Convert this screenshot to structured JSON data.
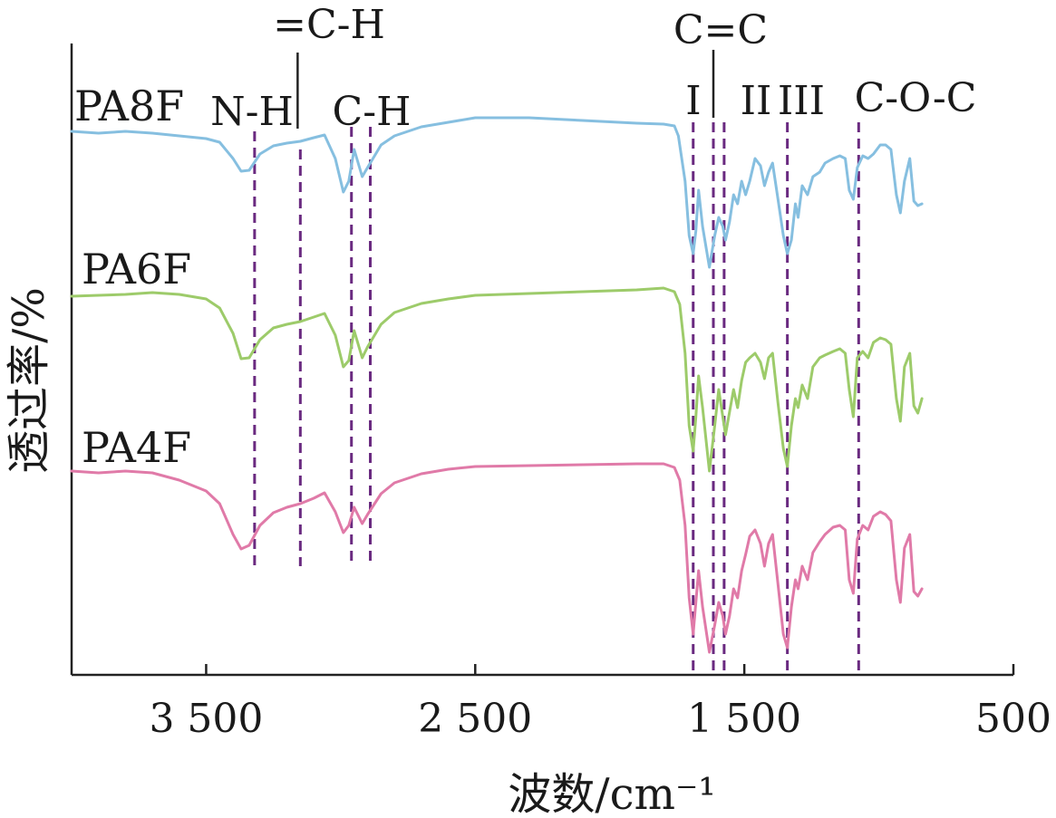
{
  "chart_data": {
    "type": "line",
    "title": "",
    "xlabel": "波数/cm⁻¹",
    "ylabel": "透过率/%",
    "xlim": [
      4000,
      500
    ],
    "x_reversed": true,
    "yaxis_ticks": false,
    "grid": false,
    "xticks": [
      {
        "value": 3500,
        "label": "3 500"
      },
      {
        "value": 2500,
        "label": "2 500"
      },
      {
        "value": 1500,
        "label": "1 500"
      },
      {
        "value": 500,
        "label": "500"
      }
    ],
    "series": [
      {
        "name": "PA8F",
        "color": "#86bfe0",
        "points": [
          [
            4000,
            145
          ],
          [
            3900,
            147
          ],
          [
            3800,
            145
          ],
          [
            3700,
            147
          ],
          [
            3600,
            150
          ],
          [
            3500,
            153
          ],
          [
            3450,
            157
          ],
          [
            3400,
            175
          ],
          [
            3370,
            189
          ],
          [
            3340,
            188
          ],
          [
            3300,
            170
          ],
          [
            3250,
            161
          ],
          [
            3200,
            158
          ],
          [
            3150,
            156
          ],
          [
            3100,
            152
          ],
          [
            3060,
            149
          ],
          [
            3020,
            175
          ],
          [
            2990,
            212
          ],
          [
            2970,
            200
          ],
          [
            2950,
            165
          ],
          [
            2920,
            195
          ],
          [
            2900,
            185
          ],
          [
            2850,
            160
          ],
          [
            2800,
            150
          ],
          [
            2700,
            140
          ],
          [
            2600,
            135
          ],
          [
            2500,
            130
          ],
          [
            2300,
            130
          ],
          [
            2100,
            133
          ],
          [
            1900,
            136
          ],
          [
            1800,
            137
          ],
          [
            1760,
            139
          ],
          [
            1745,
            150
          ],
          [
            1720,
            200
          ],
          [
            1705,
            260
          ],
          [
            1690,
            280
          ],
          [
            1680,
            255
          ],
          [
            1670,
            210
          ],
          [
            1655,
            250
          ],
          [
            1630,
            295
          ],
          [
            1610,
            260
          ],
          [
            1595,
            240
          ],
          [
            1580,
            250
          ],
          [
            1570,
            265
          ],
          [
            1555,
            245
          ],
          [
            1540,
            215
          ],
          [
            1525,
            225
          ],
          [
            1510,
            200
          ],
          [
            1495,
            215
          ],
          [
            1480,
            200
          ],
          [
            1460,
            175
          ],
          [
            1440,
            183
          ],
          [
            1425,
            205
          ],
          [
            1410,
            190
          ],
          [
            1395,
            180
          ],
          [
            1375,
            220
          ],
          [
            1355,
            260
          ],
          [
            1340,
            280
          ],
          [
            1325,
            265
          ],
          [
            1310,
            225
          ],
          [
            1300,
            240
          ],
          [
            1285,
            205
          ],
          [
            1265,
            215
          ],
          [
            1245,
            195
          ],
          [
            1220,
            190
          ],
          [
            1200,
            180
          ],
          [
            1170,
            175
          ],
          [
            1145,
            172
          ],
          [
            1125,
            175
          ],
          [
            1110,
            210
          ],
          [
            1095,
            220
          ],
          [
            1080,
            185
          ],
          [
            1060,
            172
          ],
          [
            1040,
            175
          ],
          [
            1020,
            170
          ],
          [
            995,
            160
          ],
          [
            975,
            160
          ],
          [
            955,
            165
          ],
          [
            935,
            215
          ],
          [
            920,
            235
          ],
          [
            905,
            200
          ],
          [
            885,
            175
          ],
          [
            870,
            222
          ],
          [
            855,
            227
          ],
          [
            840,
            225
          ]
        ]
      },
      {
        "name": "PA6F",
        "color": "#9dcb6a",
        "points": [
          [
            4000,
            327
          ],
          [
            3900,
            326
          ],
          [
            3800,
            325
          ],
          [
            3700,
            323
          ],
          [
            3600,
            325
          ],
          [
            3500,
            330
          ],
          [
            3450,
            340
          ],
          [
            3400,
            368
          ],
          [
            3370,
            396
          ],
          [
            3340,
            395
          ],
          [
            3300,
            375
          ],
          [
            3250,
            362
          ],
          [
            3200,
            358
          ],
          [
            3150,
            355
          ],
          [
            3100,
            350
          ],
          [
            3060,
            346
          ],
          [
            3020,
            370
          ],
          [
            2990,
            405
          ],
          [
            2970,
            398
          ],
          [
            2950,
            365
          ],
          [
            2920,
            395
          ],
          [
            2900,
            383
          ],
          [
            2850,
            358
          ],
          [
            2800,
            345
          ],
          [
            2700,
            335
          ],
          [
            2600,
            330
          ],
          [
            2500,
            326
          ],
          [
            2300,
            324
          ],
          [
            2100,
            322
          ],
          [
            1900,
            320
          ],
          [
            1800,
            318
          ],
          [
            1760,
            322
          ],
          [
            1740,
            336
          ],
          [
            1720,
            390
          ],
          [
            1705,
            470
          ],
          [
            1690,
            498
          ],
          [
            1680,
            460
          ],
          [
            1670,
            415
          ],
          [
            1655,
            450
          ],
          [
            1630,
            520
          ],
          [
            1610,
            470
          ],
          [
            1595,
            430
          ],
          [
            1580,
            460
          ],
          [
            1570,
            480
          ],
          [
            1555,
            455
          ],
          [
            1540,
            430
          ],
          [
            1525,
            450
          ],
          [
            1510,
            420
          ],
          [
            1495,
            400
          ],
          [
            1480,
            395
          ],
          [
            1460,
            390
          ],
          [
            1440,
            400
          ],
          [
            1425,
            418
          ],
          [
            1410,
            395
          ],
          [
            1395,
            390
          ],
          [
            1375,
            445
          ],
          [
            1355,
            495
          ],
          [
            1340,
            515
          ],
          [
            1325,
            470
          ],
          [
            1310,
            440
          ],
          [
            1300,
            450
          ],
          [
            1285,
            425
          ],
          [
            1265,
            440
          ],
          [
            1245,
            405
          ],
          [
            1220,
            395
          ],
          [
            1200,
            392
          ],
          [
            1170,
            388
          ],
          [
            1145,
            385
          ],
          [
            1125,
            390
          ],
          [
            1110,
            430
          ],
          [
            1095,
            460
          ],
          [
            1080,
            395
          ],
          [
            1060,
            388
          ],
          [
            1040,
            395
          ],
          [
            1020,
            378
          ],
          [
            995,
            373
          ],
          [
            975,
            375
          ],
          [
            955,
            380
          ],
          [
            935,
            440
          ],
          [
            920,
            465
          ],
          [
            905,
            405
          ],
          [
            885,
            390
          ],
          [
            870,
            448
          ],
          [
            855,
            456
          ],
          [
            840,
            440
          ]
        ]
      },
      {
        "name": "PA4F",
        "color": "#e07aa8",
        "points": [
          [
            4000,
            520
          ],
          [
            3900,
            522
          ],
          [
            3800,
            520
          ],
          [
            3700,
            522
          ],
          [
            3600,
            530
          ],
          [
            3500,
            542
          ],
          [
            3450,
            556
          ],
          [
            3400,
            590
          ],
          [
            3370,
            606
          ],
          [
            3340,
            602
          ],
          [
            3300,
            580
          ],
          [
            3250,
            566
          ],
          [
            3200,
            560
          ],
          [
            3150,
            556
          ],
          [
            3100,
            550
          ],
          [
            3060,
            544
          ],
          [
            3020,
            565
          ],
          [
            2990,
            588
          ],
          [
            2970,
            580
          ],
          [
            2950,
            560
          ],
          [
            2920,
            578
          ],
          [
            2900,
            568
          ],
          [
            2850,
            545
          ],
          [
            2800,
            533
          ],
          [
            2700,
            523
          ],
          [
            2600,
            518
          ],
          [
            2500,
            515
          ],
          [
            2300,
            514
          ],
          [
            2100,
            513
          ],
          [
            1900,
            512
          ],
          [
            1800,
            512
          ],
          [
            1760,
            516
          ],
          [
            1740,
            530
          ],
          [
            1720,
            580
          ],
          [
            1705,
            660
          ],
          [
            1690,
            700
          ],
          [
            1680,
            665
          ],
          [
            1670,
            630
          ],
          [
            1655,
            670
          ],
          [
            1630,
            720
          ],
          [
            1610,
            690
          ],
          [
            1595,
            665
          ],
          [
            1580,
            680
          ],
          [
            1570,
            700
          ],
          [
            1555,
            680
          ],
          [
            1540,
            650
          ],
          [
            1525,
            660
          ],
          [
            1510,
            630
          ],
          [
            1495,
            612
          ],
          [
            1480,
            592
          ],
          [
            1460,
            585
          ],
          [
            1440,
            600
          ],
          [
            1425,
            625
          ],
          [
            1410,
            600
          ],
          [
            1395,
            590
          ],
          [
            1375,
            645
          ],
          [
            1355,
            700
          ],
          [
            1340,
            715
          ],
          [
            1325,
            670
          ],
          [
            1310,
            640
          ],
          [
            1300,
            650
          ],
          [
            1285,
            625
          ],
          [
            1265,
            640
          ],
          [
            1245,
            610
          ],
          [
            1220,
            598
          ],
          [
            1200,
            590
          ],
          [
            1170,
            582
          ],
          [
            1145,
            580
          ],
          [
            1125,
            585
          ],
          [
            1110,
            640
          ],
          [
            1095,
            655
          ],
          [
            1080,
            595
          ],
          [
            1060,
            580
          ],
          [
            1040,
            585
          ],
          [
            1020,
            570
          ],
          [
            995,
            565
          ],
          [
            975,
            568
          ],
          [
            955,
            575
          ],
          [
            935,
            640
          ],
          [
            920,
            665
          ],
          [
            905,
            605
          ],
          [
            885,
            590
          ],
          [
            870,
            653
          ],
          [
            855,
            658
          ],
          [
            840,
            650
          ]
        ]
      }
    ],
    "series_labels": [
      "PA8F",
      "PA6F",
      "PA4F"
    ],
    "band_markers": [
      {
        "wavenumber": 3320,
        "label": "N-H",
        "style": "dashed",
        "span": [
          145,
          625
        ]
      },
      {
        "wavenumber": 3150,
        "label": "",
        "style": "dashed",
        "span": [
          165,
          625
        ]
      },
      {
        "wavenumber": 2960,
        "label": "C-H",
        "style": "dashed",
        "span": [
          140,
          625
        ]
      },
      {
        "wavenumber": 2890,
        "label": "",
        "style": "dashed",
        "span": [
          140,
          625
        ]
      },
      {
        "wavenumber": 1690,
        "label": "I",
        "style": "dashed",
        "span": [
          135,
          742
        ]
      },
      {
        "wavenumber": 1615,
        "label": "",
        "style": "dashed",
        "span": [
          135,
          742
        ]
      },
      {
        "wavenumber": 1575,
        "label": "II",
        "style": "dashed",
        "span": [
          135,
          742
        ]
      },
      {
        "wavenumber": 1340,
        "label": "III",
        "style": "dashed",
        "span": [
          135,
          742
        ]
      },
      {
        "wavenumber": 1075,
        "label": "C-O-C",
        "style": "dashed",
        "span": [
          135,
          742
        ]
      }
    ],
    "lead_markers": [
      {
        "wavenumber": 3160,
        "label": "=C-H"
      },
      {
        "wavenumber": 1615,
        "label": "C=C"
      }
    ]
  }
}
